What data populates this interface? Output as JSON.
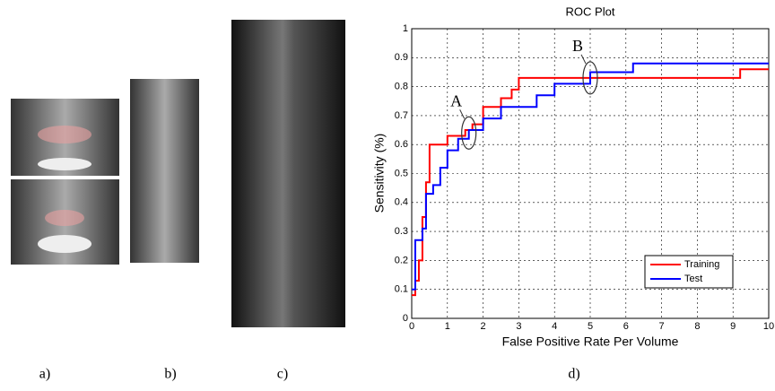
{
  "panel_labels": [
    "a)",
    "b)",
    "c)",
    "d)"
  ],
  "chart_data": {
    "type": "line",
    "step": "post",
    "title": "ROC Plot",
    "x_label": "False Positive Rate Per Volume",
    "y_label": "Sensitivity (%)",
    "xlim": [
      0,
      10
    ],
    "ylim": [
      0,
      1
    ],
    "xticks": [
      0,
      1,
      2,
      3,
      4,
      5,
      6,
      7,
      8,
      9,
      10
    ],
    "yticks": [
      0,
      0.1,
      0.2,
      0.3,
      0.4,
      0.5,
      0.6,
      0.7,
      0.8,
      0.9,
      1
    ],
    "grid": true,
    "legend": "lower right",
    "series": [
      {
        "name": "Training",
        "color": "#ff0000",
        "x": [
          0,
          0.1,
          0.2,
          0.3,
          0.4,
          0.5,
          1.0,
          1.5,
          1.7,
          2.0,
          2.5,
          2.8,
          3.0,
          9.2,
          10
        ],
        "values": [
          0.08,
          0.13,
          0.2,
          0.35,
          0.47,
          0.6,
          0.63,
          0.65,
          0.67,
          0.73,
          0.76,
          0.79,
          0.83,
          0.86,
          0.86
        ]
      },
      {
        "name": "Test",
        "color": "#0000ff",
        "x": [
          0,
          0.1,
          0.3,
          0.4,
          0.6,
          0.8,
          1.0,
          1.3,
          1.6,
          2.0,
          2.5,
          3.5,
          4.0,
          5.0,
          6.2,
          10
        ],
        "values": [
          0.1,
          0.27,
          0.31,
          0.43,
          0.46,
          0.52,
          0.58,
          0.62,
          0.65,
          0.69,
          0.73,
          0.77,
          0.81,
          0.85,
          0.88,
          0.88
        ]
      }
    ],
    "annotations": [
      {
        "text": "A",
        "x": 1.6,
        "y": 0.64
      },
      {
        "text": "B",
        "x": 5.0,
        "y": 0.83
      }
    ]
  }
}
